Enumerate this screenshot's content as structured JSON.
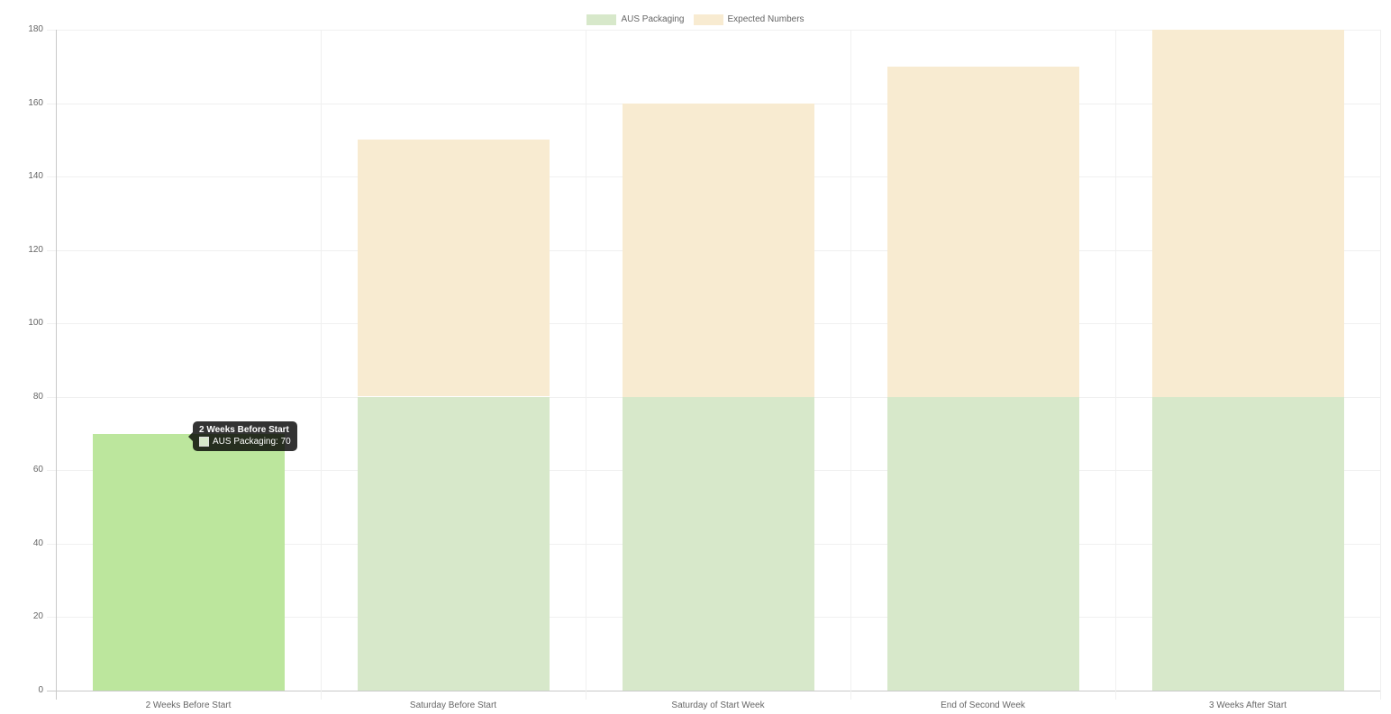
{
  "chart_data": {
    "type": "bar",
    "stacked": true,
    "title": "",
    "categories": [
      "2 Weeks Before Start",
      "Saturday Before Start",
      "Saturday of Start Week",
      "End of Second Week",
      "3 Weeks After Start"
    ],
    "series": [
      {
        "name": "AUS Packaging",
        "color": "#d7e8ca",
        "hover_color": "#bce69d",
        "values": [
          70,
          80,
          80,
          80,
          80
        ]
      },
      {
        "name": "Expected Numbers",
        "color": "#f8ebd1",
        "hover_color": "#f8ebd1",
        "values": [
          0,
          70,
          80,
          90,
          100
        ]
      }
    ],
    "stack_totals": [
      70,
      150,
      160,
      170,
      180
    ],
    "xlabel": "",
    "ylabel": "",
    "ylim": [
      0,
      180
    ],
    "ytick_step": 20,
    "ytick_labels": [
      "0",
      "20",
      "40",
      "60",
      "80",
      "100",
      "120",
      "140",
      "160",
      "180"
    ],
    "grid": true,
    "legend_position": "top-center"
  },
  "legend": {
    "items": [
      {
        "label": "AUS Packaging",
        "color": "#d7e8ca"
      },
      {
        "label": "Expected Numbers",
        "color": "#f8ebd1"
      }
    ]
  },
  "tooltip": {
    "visible": true,
    "category_index": 0,
    "title": "2 Weeks Before Start",
    "series_name": "AUS Packaging",
    "value": 70,
    "text": "AUS Packaging: 70",
    "swatch_color": "#d7e8ca"
  },
  "colors": {
    "background": "#ffffff",
    "grid": "#f0f0f0",
    "axis_line": "#c9c9c9",
    "label_text": "#666666",
    "tooltip_bg": "rgba(0,0,0,0.8)"
  }
}
